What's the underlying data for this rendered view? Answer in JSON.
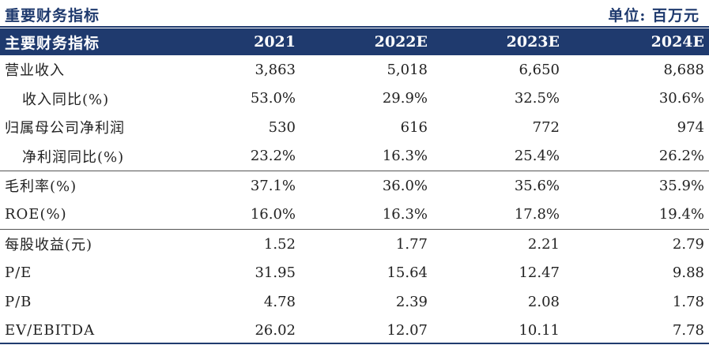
{
  "header": {
    "title": "重要财务指标",
    "unit": "单位: 百万元"
  },
  "table": {
    "columns": [
      "主要财务指标",
      "2021",
      "2022E",
      "2023E",
      "2024E"
    ],
    "rows": [
      {
        "label": "营业收入",
        "values": [
          "3,863",
          "5,018",
          "6,650",
          "8,688"
        ]
      },
      {
        "label": "收入同比(%)",
        "values": [
          "53.0%",
          "29.9%",
          "32.5%",
          "30.6%"
        ]
      },
      {
        "label": "归属母公司净利润",
        "values": [
          "530",
          "616",
          "772",
          "974"
        ]
      },
      {
        "label": "净利润同比(%)",
        "values": [
          "23.2%",
          "16.3%",
          "25.4%",
          "26.2%"
        ]
      },
      {
        "label": "毛利率(%)",
        "values": [
          "37.1%",
          "36.0%",
          "35.6%",
          "35.9%"
        ]
      },
      {
        "label": "ROE(%)",
        "values": [
          "16.0%",
          "16.3%",
          "17.8%",
          "19.4%"
        ]
      },
      {
        "label": "每股收益(元)",
        "values": [
          "1.52",
          "1.77",
          "2.21",
          "2.79"
        ]
      },
      {
        "label": "P/E",
        "values": [
          "31.95",
          "15.64",
          "12.47",
          "9.88"
        ]
      },
      {
        "label": "P/B",
        "values": [
          "4.78",
          "2.39",
          "2.08",
          "1.78"
        ]
      },
      {
        "label": "EV/EBITDA",
        "values": [
          "26.02",
          "12.07",
          "10.11",
          "7.78"
        ]
      }
    ]
  }
}
